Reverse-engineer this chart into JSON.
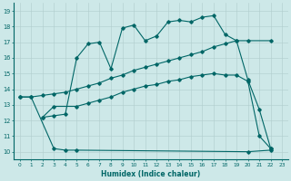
{
  "xlabel": "Humidex (Indice chaleur)",
  "xlim": [
    -0.5,
    23.5
  ],
  "ylim": [
    9.5,
    19.5
  ],
  "xticks": [
    0,
    1,
    2,
    3,
    4,
    5,
    6,
    7,
    8,
    9,
    10,
    11,
    12,
    13,
    14,
    15,
    16,
    17,
    18,
    19,
    20,
    21,
    22,
    23
  ],
  "yticks": [
    10,
    11,
    12,
    13,
    14,
    15,
    16,
    17,
    18,
    19
  ],
  "bg_color": "#cde8e8",
  "grid_color": "#b0cccc",
  "line_color": "#006666",
  "line1_x": [
    0,
    1,
    3,
    4,
    5,
    20,
    22
  ],
  "line1_y": [
    13.5,
    13.5,
    10.2,
    10.1,
    10.1,
    10.0,
    10.1
  ],
  "line2_x": [
    2,
    3,
    4,
    5,
    6,
    7,
    8,
    9,
    10,
    11,
    12,
    13,
    14,
    15,
    16,
    17,
    18,
    19,
    20,
    21,
    22
  ],
  "line2_y": [
    12.2,
    12.3,
    12.4,
    16.0,
    16.9,
    17.0,
    15.3,
    17.9,
    18.1,
    17.1,
    17.4,
    18.3,
    18.4,
    18.3,
    18.6,
    18.7,
    17.5,
    17.1,
    14.6,
    12.7,
    10.2
  ],
  "line3_x": [
    2,
    3,
    5,
    6,
    7,
    8,
    9,
    10,
    11,
    12,
    13,
    14,
    15,
    16,
    17,
    18,
    19,
    20,
    21,
    22
  ],
  "line3_y": [
    12.2,
    12.9,
    12.9,
    13.1,
    13.3,
    13.5,
    13.8,
    14.0,
    14.2,
    14.3,
    14.5,
    14.6,
    14.8,
    14.9,
    15.0,
    14.9,
    14.9,
    14.5,
    11.0,
    10.2
  ],
  "line4_x": [
    0,
    1,
    2,
    3,
    4,
    5,
    6,
    7,
    8,
    9,
    10,
    11,
    12,
    13,
    14,
    15,
    16,
    17,
    18,
    19,
    20,
    22
  ],
  "line4_y": [
    13.5,
    13.5,
    13.6,
    13.7,
    13.8,
    14.0,
    14.2,
    14.4,
    14.7,
    14.9,
    15.2,
    15.4,
    15.6,
    15.8,
    16.0,
    16.2,
    16.4,
    16.7,
    16.9,
    17.1,
    17.1,
    17.1
  ]
}
